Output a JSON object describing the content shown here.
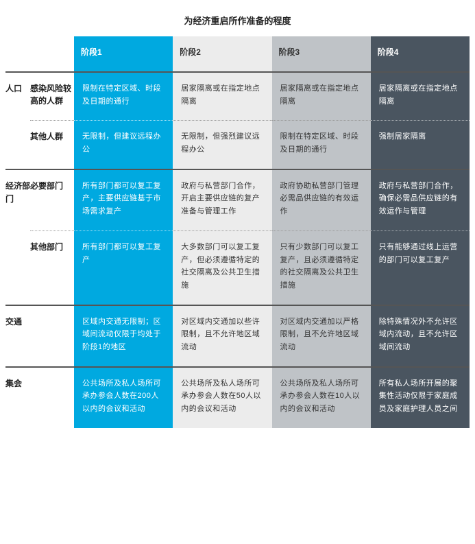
{
  "title": "为经济重启所作准备的程度",
  "columns": {
    "phase1": {
      "label": "阶段1",
      "bg": "#00a9e0",
      "fg": "#ffffff"
    },
    "phase2": {
      "label": "阶段2",
      "bg": "#ececec",
      "fg": "#333333"
    },
    "phase3": {
      "label": "阶段3",
      "bg": "#bfc3c7",
      "fg": "#333333"
    },
    "phase4": {
      "label": "阶段4",
      "bg": "#4a5560",
      "fg": "#ffffff"
    }
  },
  "sections": {
    "population": {
      "label": "人口",
      "rows": {
        "high_risk": {
          "label": "感染风险较高的人群",
          "phase1": "限制在特定区域、时段及日期的通行",
          "phase2": "居家隔离或在指定地点隔离",
          "phase3": "居家隔离或在指定地点隔离",
          "phase4": "居家隔离或在指定地点隔离"
        },
        "others": {
          "label": "其他人群",
          "phase1": "无限制，但建议远程办公",
          "phase2": "无限制，但强烈建议远程办公",
          "phase3": "限制在特定区域、时段及日期的通行",
          "phase4": "强制居家隔离"
        }
      }
    },
    "economy": {
      "label": "经济部门",
      "rows": {
        "essential": {
          "label": "必要部门",
          "phase1": "所有部门都可以复工复产，主要供应链基于市场需求复产",
          "phase2": "政府与私营部门合作，开启主要供应链的复产准备与管理工作",
          "phase3": "政府协助私营部门管理必需品供应链的有效运作",
          "phase4": "政府与私营部门合作，确保必需品供应链的有效运作与管理"
        },
        "nonessential": {
          "label": "其他部门",
          "phase1": "所有部门都可以复工复产",
          "phase2": "大多数部门可以复工复产，但必须遵循特定的社交隔离及公共卫生措施",
          "phase3": "只有少数部门可以复工复产，且必须遵循特定的社交隔离及公共卫生措施",
          "phase4": "只有能够通过线上运营的部门可以复工复产"
        }
      }
    },
    "transport": {
      "label": "交通",
      "rows": {
        "main": {
          "label": "",
          "phase1": "区域内交通无限制；区域间流动仅限于均处于阶段1的地区",
          "phase2": "对区域内交通加以些许限制，且不允许地区域流动",
          "phase3": "对区域内交通加以严格限制，且不允许地区域流动",
          "phase4": "除特殊情况外不允许区域内流动，且不允许区域间流动"
        }
      }
    },
    "gathering": {
      "label": "集会",
      "rows": {
        "main": {
          "label": "",
          "phase1": "公共场所及私人场所可承办参会人数在200人以内的会议和活动",
          "phase2": "公共场所及私人场所可承办参会人数在50人以内的会议和活动",
          "phase3": "公共场所及私人场所可承办参会人数在10人以内的会议和活动",
          "phase4": "所有私人场所开展的聚集性活动仅限于家庭成员及家庭护理人员之间"
        }
      }
    }
  },
  "style": {
    "title_fontsize": 13,
    "cell_fontsize": 11,
    "label_fontsize": 12,
    "line_height": 1.7,
    "major_divider_color": "#555555",
    "minor_divider_style": "dotted",
    "background": "#ffffff"
  }
}
